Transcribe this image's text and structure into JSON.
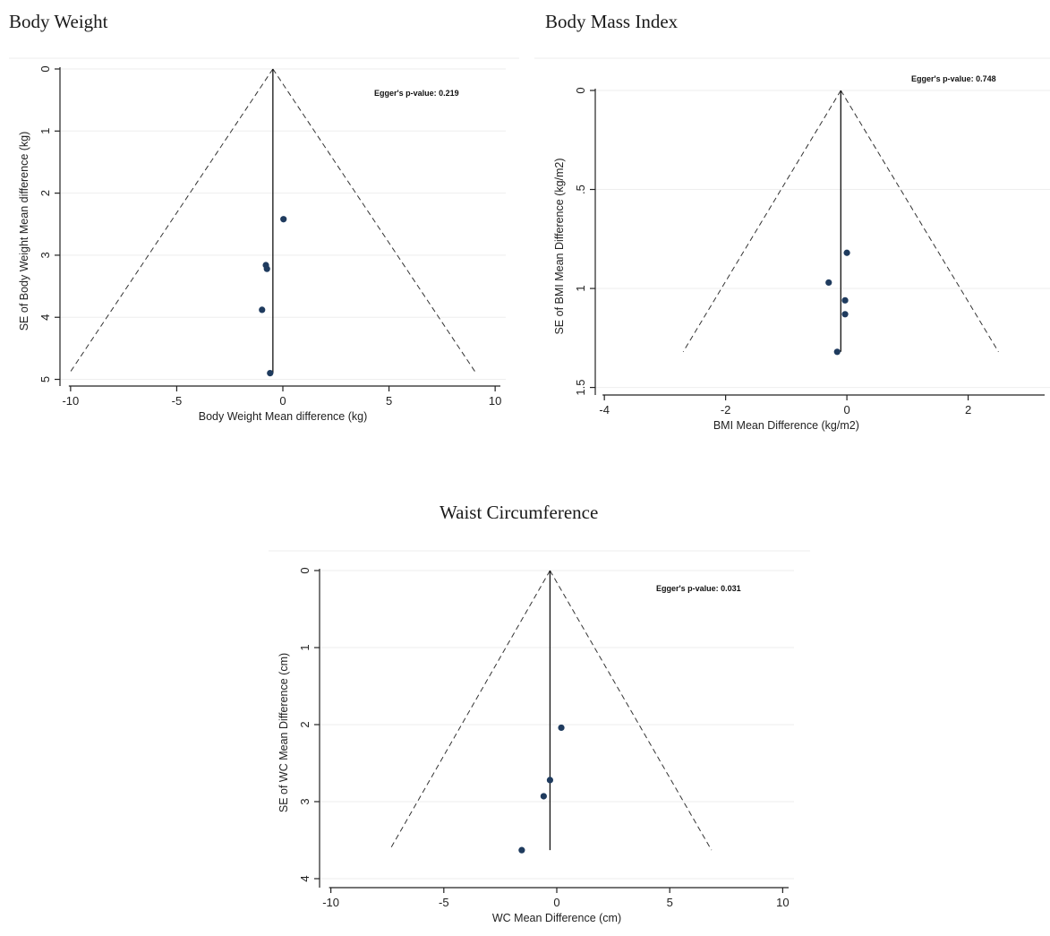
{
  "chart_data": [
    {
      "id": "bw",
      "type": "scatter",
      "title": "Body Weight",
      "xlabel": "Body Weight Mean difference (kg)",
      "ylabel": "SE of Body Weight Mean difference (kg)",
      "xlim": [
        -10.5,
        10.5
      ],
      "ylim": [
        0,
        5.05
      ],
      "y_inverted": true,
      "xticks": [
        -10,
        -5,
        0,
        5,
        10
      ],
      "xtick_labels": [
        "-10",
        "-5",
        "0",
        "5",
        "10"
      ],
      "yticks": [
        0,
        1,
        2,
        3,
        4,
        5
      ],
      "ytick_labels": [
        "0",
        "1",
        "2",
        "3",
        "4",
        "5"
      ],
      "pooled_estimate": -0.47,
      "funnel_limits": {
        "se_max": 4.9,
        "left_x": -10.05,
        "right_x": 9.1
      },
      "annotation": "Egger's p-value: 0.219",
      "points": [
        {
          "x": 0.03,
          "y": 2.42
        },
        {
          "x": -0.8,
          "y": 3.16
        },
        {
          "x": -0.75,
          "y": 3.22
        },
        {
          "x": -0.98,
          "y": 3.88
        },
        {
          "x": -0.6,
          "y": 4.9
        }
      ],
      "grid": true
    },
    {
      "id": "bmi",
      "type": "scatter",
      "title": "Body Mass Index",
      "xlabel": "BMI Mean Difference (kg/m2)",
      "ylabel": "SE of BMI Mean Difference (kg/m2)",
      "xlim": [
        -4.15,
        3.35
      ],
      "ylim": [
        0,
        1.52
      ],
      "y_inverted": true,
      "xticks": [
        -4,
        -2,
        0,
        2
      ],
      "xtick_labels": [
        "-4",
        "-2",
        "0",
        "2"
      ],
      "yticks": [
        0,
        0.5,
        1,
        1.5
      ],
      "ytick_labels": [
        "0",
        ".5",
        "1",
        "1.5"
      ],
      "pooled_estimate": -0.1,
      "funnel_limits": {
        "se_max": 1.32,
        "left_x": -2.7,
        "right_x": 2.5
      },
      "annotation": "Egger's p-value: 0.748",
      "points": [
        {
          "x": 0.0,
          "y": 0.82
        },
        {
          "x": -0.3,
          "y": 0.97
        },
        {
          "x": -0.03,
          "y": 1.06
        },
        {
          "x": -0.03,
          "y": 1.13
        },
        {
          "x": -0.16,
          "y": 1.32
        }
      ],
      "grid": true
    },
    {
      "id": "wc",
      "type": "scatter",
      "title": "Waist Circumference",
      "xlabel": "WC Mean Difference (cm)",
      "ylabel": "SE of WC Mean Difference (cm)",
      "xlim": [
        -10.5,
        10.5
      ],
      "ylim": [
        0,
        4.07
      ],
      "y_inverted": true,
      "xticks": [
        -10,
        -5,
        0,
        5,
        10
      ],
      "xtick_labels": [
        "-10",
        "-5",
        "0",
        "5",
        "10"
      ],
      "yticks": [
        0,
        1,
        2,
        3,
        4
      ],
      "ytick_labels": [
        "0",
        "1",
        "2",
        "3",
        "4"
      ],
      "pooled_estimate": -0.3,
      "funnel_limits": {
        "se_max": 3.63,
        "left_x": -7.4,
        "right_x": 6.85
      },
      "annotation": "Egger's p-value: 0.031",
      "points": [
        {
          "x": 0.2,
          "y": 2.04
        },
        {
          "x": -0.3,
          "y": 2.72
        },
        {
          "x": -0.58,
          "y": 2.93
        },
        {
          "x": -1.55,
          "y": 3.63
        }
      ],
      "grid": true
    }
  ]
}
